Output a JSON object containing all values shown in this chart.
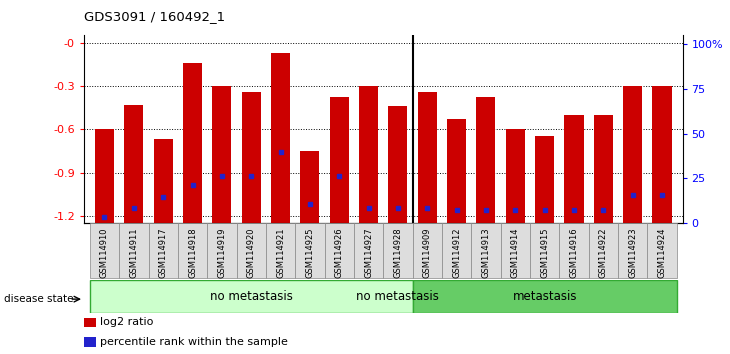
{
  "title": "GDS3091 / 160492_1",
  "samples": [
    "GSM114910",
    "GSM114911",
    "GSM114917",
    "GSM114918",
    "GSM114919",
    "GSM114920",
    "GSM114921",
    "GSM114925",
    "GSM114926",
    "GSM114927",
    "GSM114928",
    "GSM114909",
    "GSM114912",
    "GSM114913",
    "GSM114914",
    "GSM114915",
    "GSM114916",
    "GSM114922",
    "GSM114923",
    "GSM114924"
  ],
  "log2_ratio": [
    -0.6,
    -0.43,
    -0.67,
    -0.14,
    -0.3,
    -0.34,
    -0.07,
    -0.75,
    -0.38,
    -0.3,
    -0.44,
    -0.34,
    -0.53,
    -0.38,
    -0.6,
    -0.65,
    -0.5,
    -0.5,
    -0.3,
    -0.3
  ],
  "percentile_rank": [
    3,
    8,
    14,
    20,
    25,
    25,
    38,
    10,
    25,
    8,
    8,
    8,
    7,
    7,
    7,
    7,
    7,
    7,
    15,
    15
  ],
  "no_metastasis_count": 11,
  "metastasis_count": 9,
  "ymin": -1.25,
  "ymax": 0.05,
  "yticks": [
    -1.2,
    -0.9,
    -0.6,
    -0.3,
    0.0
  ],
  "yticklabels": [
    "-1.2",
    "-0.9",
    "-0.6",
    "-0.3",
    "-0"
  ],
  "right_yticks": [
    0,
    25,
    50,
    75,
    100
  ],
  "right_yticklabels": [
    "0",
    "25",
    "50",
    "75",
    "100%"
  ],
  "bar_color": "#cc0000",
  "percentile_color": "#2222cc",
  "no_metastasis_color": "#ccffcc",
  "metastasis_color": "#66cc66",
  "legend_log2": "log2 ratio",
  "legend_pct": "percentile rank within the sample",
  "disease_state_label": "disease state",
  "no_metastasis_label": "no metastasis",
  "metastasis_label": "metastasis",
  "bg_color": "#ffffff"
}
